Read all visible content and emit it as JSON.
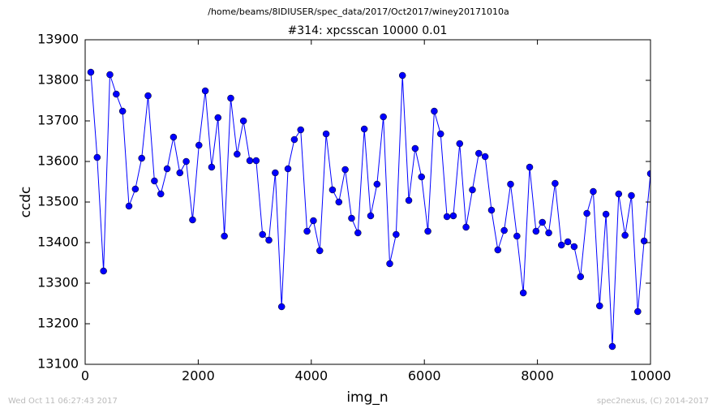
{
  "chart_data": {
    "type": "line",
    "suptitle": "/home/beams/8IDIUSER/spec_data/2017/Oct2017/winey20171010a",
    "title": "#314: xpcsscan 10000 0.01",
    "xlabel": "img_n",
    "ylabel": "ccdc",
    "footer_left": "Wed Oct 11 06:27:43 2017",
    "footer_right": "spec2nexus, (C) 2014-2017",
    "xlim": [
      0,
      10000
    ],
    "xticks": [
      0,
      2000,
      4000,
      6000,
      8000,
      10000
    ],
    "ylim": [
      13100,
      13900
    ],
    "yticks": [
      13100,
      13200,
      13300,
      13400,
      13500,
      13600,
      13700,
      13800,
      13900
    ],
    "x": [
      100,
      212.5,
      325,
      437.5,
      550,
      662.5,
      775,
      887.5,
      1000,
      1112.5,
      1225,
      1337.5,
      1450,
      1562.5,
      1675,
      1787.5,
      1900,
      2012.5,
      2125,
      2237.5,
      2350,
      2462.5,
      2575,
      2687.5,
      2800,
      2912.5,
      3025,
      3137.5,
      3250,
      3362.5,
      3475,
      3587.5,
      3700,
      3812.5,
      3925,
      4037.5,
      4150,
      4262.5,
      4375,
      4487.5,
      4600,
      4712.5,
      4825,
      4937.5,
      5050,
      5162.5,
      5275,
      5387.5,
      5500,
      5612.5,
      5725,
      5837.5,
      5950,
      6062.5,
      6175,
      6287.5,
      6400,
      6512.5,
      6625,
      6737.5,
      6850,
      6962.5,
      7075,
      7187.5,
      7300,
      7412.5,
      7525,
      7637.5,
      7750,
      7862.5,
      7975,
      8087.5,
      8200,
      8312.5,
      8425,
      8537.5,
      8650,
      8762.5,
      8875,
      8987.5,
      9100,
      9212.5,
      9325,
      9437.5,
      9550,
      9662.5,
      9775,
      9887.5,
      10000
    ],
    "series": [
      {
        "name": "ccdc",
        "color": "#0000ff",
        "values": [
          13820,
          13610,
          13330,
          13814,
          13766,
          13724,
          13490,
          13532,
          13608,
          13762,
          13552,
          13520,
          13582,
          13660,
          13572,
          13600,
          13456,
          13640,
          13774,
          13586,
          13708,
          13416,
          13756,
          13618,
          13700,
          13602,
          13602,
          13420,
          13406,
          13572,
          13242,
          13582,
          13654,
          13678,
          13428,
          13454,
          13380,
          13668,
          13530,
          13500,
          13580,
          13460,
          13424,
          13680,
          13466,
          13544,
          13710,
          13348,
          13420,
          13812,
          13504,
          13632,
          13562,
          13428,
          13724,
          13668,
          13464,
          13466,
          13644,
          13438,
          13530,
          13620,
          13612,
          13480,
          13382,
          13430,
          13544,
          13416,
          13276,
          13586,
          13428,
          13450,
          13424,
          13546,
          13394,
          13402,
          13390,
          13316,
          13472,
          13526,
          13244,
          13470,
          13144,
          13520,
          13418,
          13516,
          13230,
          13404,
          13570
        ]
      }
    ]
  }
}
